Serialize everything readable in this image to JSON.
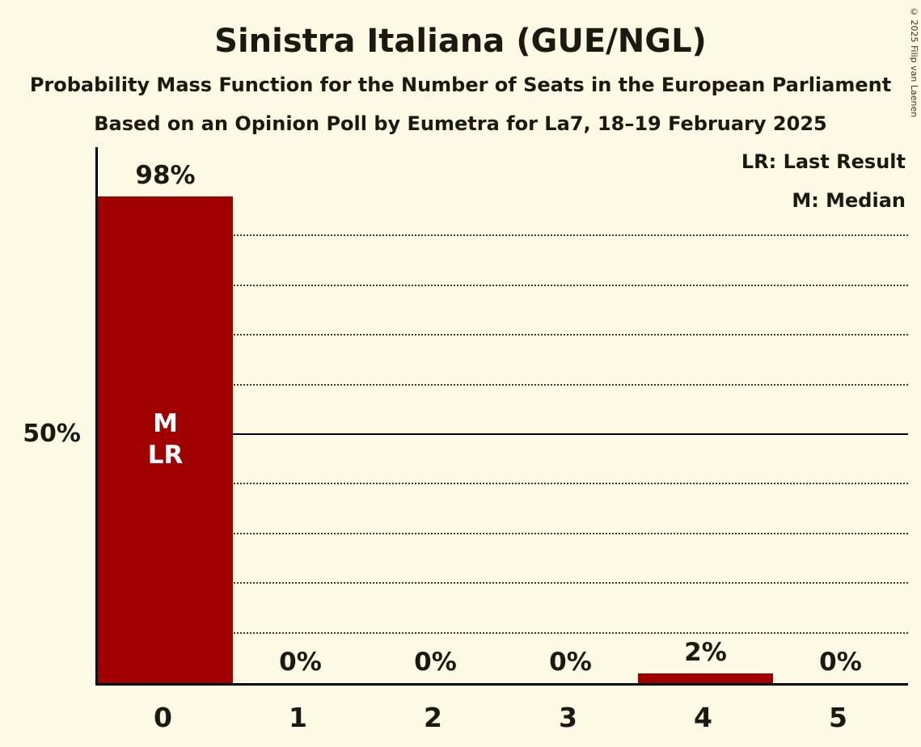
{
  "title": "Sinistra Italiana (GUE/NGL)",
  "subtitle1": "Probability Mass Function for the Number of Seats in the European Parliament",
  "subtitle2": "Based on an Opinion Poll by Eumetra for La7, 18–19 February 2025",
  "legend": {
    "lr": "LR: Last Result",
    "m": "M: Median"
  },
  "y_axis_label": "50%",
  "copyright": "© 2025 Filip van Laenen",
  "colors": {
    "background": "#FCF9E4",
    "bar": "#A00000",
    "text": "#1A1A10"
  },
  "chart_data": {
    "type": "bar",
    "title": "Sinistra Italiana (GUE/NGL)",
    "categories": [
      "0",
      "1",
      "2",
      "3",
      "4",
      "5"
    ],
    "values": [
      98,
      0,
      0,
      0,
      2,
      0
    ],
    "bar_labels": [
      "98%",
      "0%",
      "0%",
      "0%",
      "2%",
      "0%"
    ],
    "ylim": [
      0,
      100
    ],
    "y_tick_labels": [
      "50%"
    ],
    "gridlines_pct": [
      10,
      20,
      30,
      40,
      50,
      60,
      70,
      80,
      90
    ],
    "solid_line_pct": 50,
    "grid": "dotted horizontal lines every 10%, solid line at 50%",
    "legend_position": "top-right",
    "markers": {
      "category_index": 0,
      "labels": [
        "M",
        "LR"
      ],
      "median_label": "M: Median",
      "last_result_label": "LR: Last Result"
    }
  }
}
